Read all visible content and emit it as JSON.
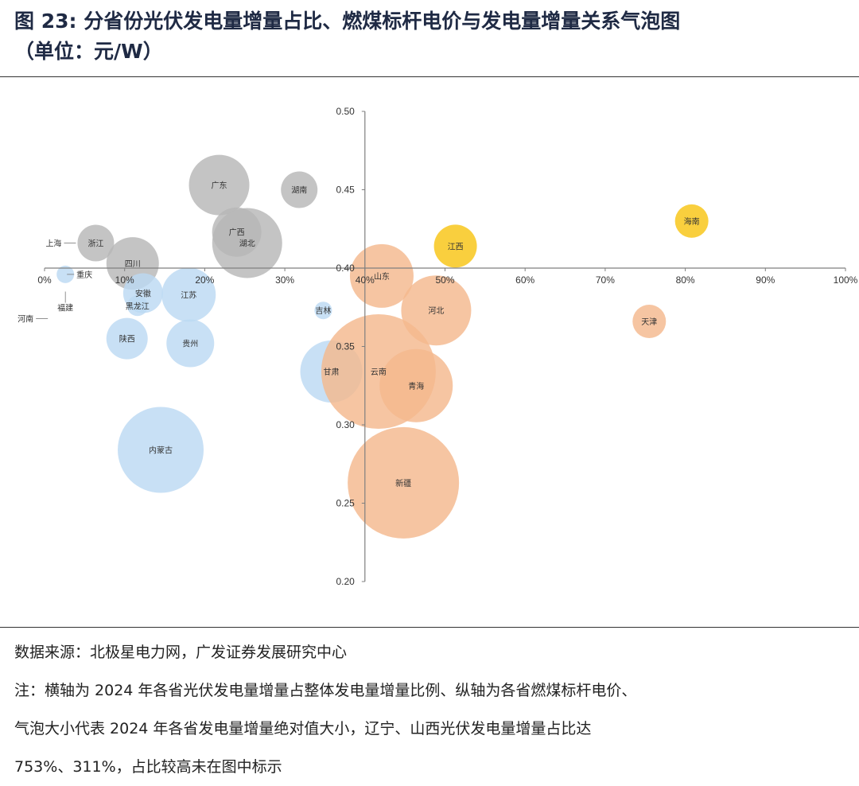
{
  "title": {
    "prefix": "图",
    "number": "23:",
    "text": "分省份光伏发电量增量占比、燃煤标杆电价与发电量增量关系气泡图",
    "unit": "（单位：元/W）"
  },
  "footer": {
    "source": "数据来源：北极星电力网，广发证券发展研究中心",
    "note_line1": "注：横轴为 2024 年各省光伏发电量增量占整体发电量增量比例、纵轴为各省燃煤标杆电价、",
    "note_line2": "气泡大小代表 2024 年各省发电量增量绝对值大小，辽宁、山西光伏发电量增量占比达",
    "note_line3": "753%、311%，占比较高未在图中标示"
  },
  "colors": {
    "blue": "#bcd9f3",
    "gray": "#b7b7b7",
    "orange": "#f4b88e",
    "yellow": "#f8c514",
    "axis": "#7f7f7f"
  },
  "chart_data": {
    "type": "bubble",
    "xlim": [
      0,
      100
    ],
    "ylim": [
      0.2,
      0.5
    ],
    "x_axis_crosses_y": 0.4,
    "y_axis_at_x": 40,
    "x_ticks": [
      "0%",
      "10%",
      "20%",
      "30%",
      "40%",
      "50%",
      "60%",
      "70%",
      "80%",
      "90%",
      "100%"
    ],
    "y_ticks": [
      "0.20",
      "0.25",
      "0.30",
      "0.35",
      "0.40",
      "0.45",
      "0.50"
    ],
    "x_tick_values": [
      0,
      10,
      20,
      30,
      40,
      50,
      60,
      70,
      80,
      90,
      100
    ],
    "y_tick_values": [
      0.2,
      0.25,
      0.3,
      0.35,
      0.4,
      0.45,
      0.5
    ],
    "points": [
      {
        "name": "广东",
        "x": 21.8,
        "y": 0.453,
        "size": 38,
        "color": "gray"
      },
      {
        "name": "湖南",
        "x": 31.8,
        "y": 0.45,
        "size": 23,
        "color": "gray"
      },
      {
        "name": "广西",
        "x": 24.0,
        "y": 0.423,
        "size": 31,
        "color": "gray"
      },
      {
        "name": "湖北",
        "x": 25.3,
        "y": 0.416,
        "size": 44,
        "color": "gray"
      },
      {
        "name": "浙江",
        "x": 6.4,
        "y": 0.416,
        "size": 23,
        "color": "gray",
        "callout": "上海"
      },
      {
        "name": "四川",
        "x": 11.0,
        "y": 0.403,
        "size": 33,
        "color": "gray"
      },
      {
        "name": "重庆",
        "x": 2.6,
        "y": 0.396,
        "size": 11,
        "color": "blue"
      },
      {
        "name": "福建",
        "x": 2.6,
        "y": 0.384,
        "size": 0,
        "color": "blue",
        "callout": "河南"
      },
      {
        "name": "安徽",
        "x": 12.3,
        "y": 0.384,
        "size": 25,
        "color": "blue"
      },
      {
        "name": "黑龙江",
        "x": 11.6,
        "y": 0.376,
        "size": 13,
        "color": "blue"
      },
      {
        "name": "江苏",
        "x": 18.0,
        "y": 0.383,
        "size": 34,
        "color": "blue"
      },
      {
        "name": "吉林",
        "x": 34.8,
        "y": 0.373,
        "size": 11,
        "color": "blue"
      },
      {
        "name": "陕西",
        "x": 10.3,
        "y": 0.355,
        "size": 26,
        "color": "blue"
      },
      {
        "name": "贵州",
        "x": 18.2,
        "y": 0.352,
        "size": 30,
        "color": "blue"
      },
      {
        "name": "甘肃",
        "x": 35.8,
        "y": 0.334,
        "size": 39,
        "color": "blue"
      },
      {
        "name": "内蒙古",
        "x": 14.5,
        "y": 0.284,
        "size": 54,
        "color": "blue"
      },
      {
        "name": "山东",
        "x": 42.1,
        "y": 0.395,
        "size": 40,
        "color": "orange"
      },
      {
        "name": "河北",
        "x": 48.9,
        "y": 0.373,
        "size": 44,
        "color": "orange"
      },
      {
        "name": "云南",
        "x": 41.7,
        "y": 0.334,
        "size": 72,
        "color": "orange"
      },
      {
        "name": "青海",
        "x": 46.4,
        "y": 0.325,
        "size": 46,
        "color": "orange"
      },
      {
        "name": "新疆",
        "x": 44.8,
        "y": 0.263,
        "size": 70,
        "color": "orange"
      },
      {
        "name": "天津",
        "x": 75.5,
        "y": 0.366,
        "size": 21,
        "color": "orange"
      },
      {
        "name": "江西",
        "x": 51.3,
        "y": 0.414,
        "size": 27,
        "color": "yellow"
      },
      {
        "name": "海南",
        "x": 80.8,
        "y": 0.43,
        "size": 21,
        "color": "yellow"
      }
    ]
  }
}
